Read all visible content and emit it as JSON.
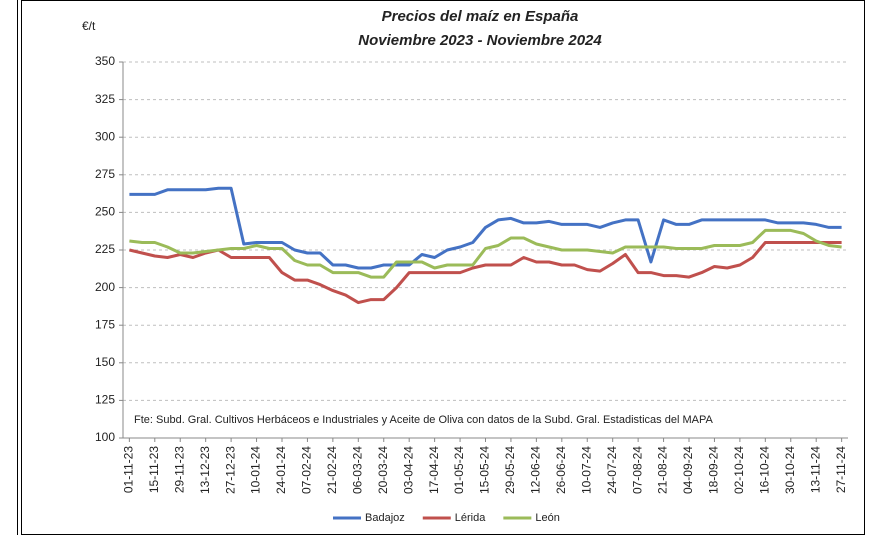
{
  "chart_data": {
    "type": "line",
    "title": "Precios del maíz en España",
    "subtitle": "Noviembre 2023 - Noviembre 2024",
    "y_label": "€/t",
    "annotation": "Fte: Subd. Gral. Cultivos Herbáceos e Industriales y Aceite de Oliva con datos de la Subd. Gral. Estadisticas del MAPA",
    "categories": [
      "01-11-23",
      null,
      "15-11-23",
      null,
      "29-11-23",
      null,
      "13-12-23",
      null,
      "27-12-23",
      null,
      "10-01-24",
      null,
      "24-01-24",
      null,
      "07-02-24",
      null,
      "21-02-24",
      null,
      "06-03-24",
      null,
      "20-03-24",
      null,
      "03-04-24",
      null,
      "17-04-24",
      null,
      "01-05-24",
      null,
      "15-05-24",
      null,
      "29-05-24",
      null,
      "12-06-24",
      null,
      "26-06-24",
      null,
      "10-07-24",
      null,
      "24-07-24",
      null,
      "07-08-24",
      null,
      "21-08-24",
      null,
      "04-09-24",
      null,
      "18-09-24",
      null,
      "02-10-24",
      null,
      "16-10-24",
      null,
      "30-10-24",
      null,
      "13-11-24",
      null,
      "27-11-24"
    ],
    "series": [
      {
        "name": "Badajoz",
        "color": "#4472c4",
        "values": [
          262,
          262,
          262,
          265,
          265,
          265,
          265,
          266,
          266,
          229,
          230,
          230,
          230,
          225,
          223,
          223,
          215,
          215,
          213,
          213,
          215,
          215,
          215,
          222,
          220,
          225,
          227,
          230,
          240,
          245,
          246,
          243,
          243,
          244,
          242,
          242,
          242,
          240,
          243,
          245,
          245,
          217,
          245,
          242,
          242,
          245,
          245,
          245,
          245,
          245,
          245,
          243,
          243,
          243,
          242,
          240,
          240
        ]
      },
      {
        "name": "Lérida",
        "color": "#c0504d",
        "values": [
          225,
          223,
          221,
          220,
          222,
          220,
          223,
          225,
          220,
          220,
          220,
          220,
          210,
          205,
          205,
          202,
          198,
          195,
          190,
          192,
          192,
          200,
          210,
          210,
          210,
          210,
          210,
          213,
          215,
          215,
          215,
          220,
          217,
          217,
          215,
          215,
          212,
          211,
          216,
          222,
          210,
          210,
          208,
          208,
          207,
          210,
          214,
          213,
          215,
          220,
          230,
          230,
          230,
          230,
          230,
          230,
          230
        ]
      },
      {
        "name": "León",
        "color": "#9bbb59",
        "values": [
          231,
          230,
          230,
          227,
          223,
          223,
          224,
          225,
          226,
          226,
          228,
          226,
          226,
          218,
          215,
          215,
          210,
          210,
          210,
          207,
          207,
          217,
          217,
          217,
          213,
          215,
          215,
          215,
          226,
          228,
          233,
          233,
          229,
          227,
          225,
          225,
          225,
          224,
          223,
          227,
          227,
          227,
          227,
          226,
          226,
          226,
          228,
          228,
          228,
          230,
          238,
          238,
          238,
          236,
          231,
          228,
          227
        ]
      }
    ],
    "ylim": [
      100,
      350
    ],
    "yticks": [
      100,
      125,
      150,
      175,
      200,
      225,
      250,
      275,
      300,
      325,
      350
    ],
    "grid": true,
    "legend": "bottom"
  }
}
